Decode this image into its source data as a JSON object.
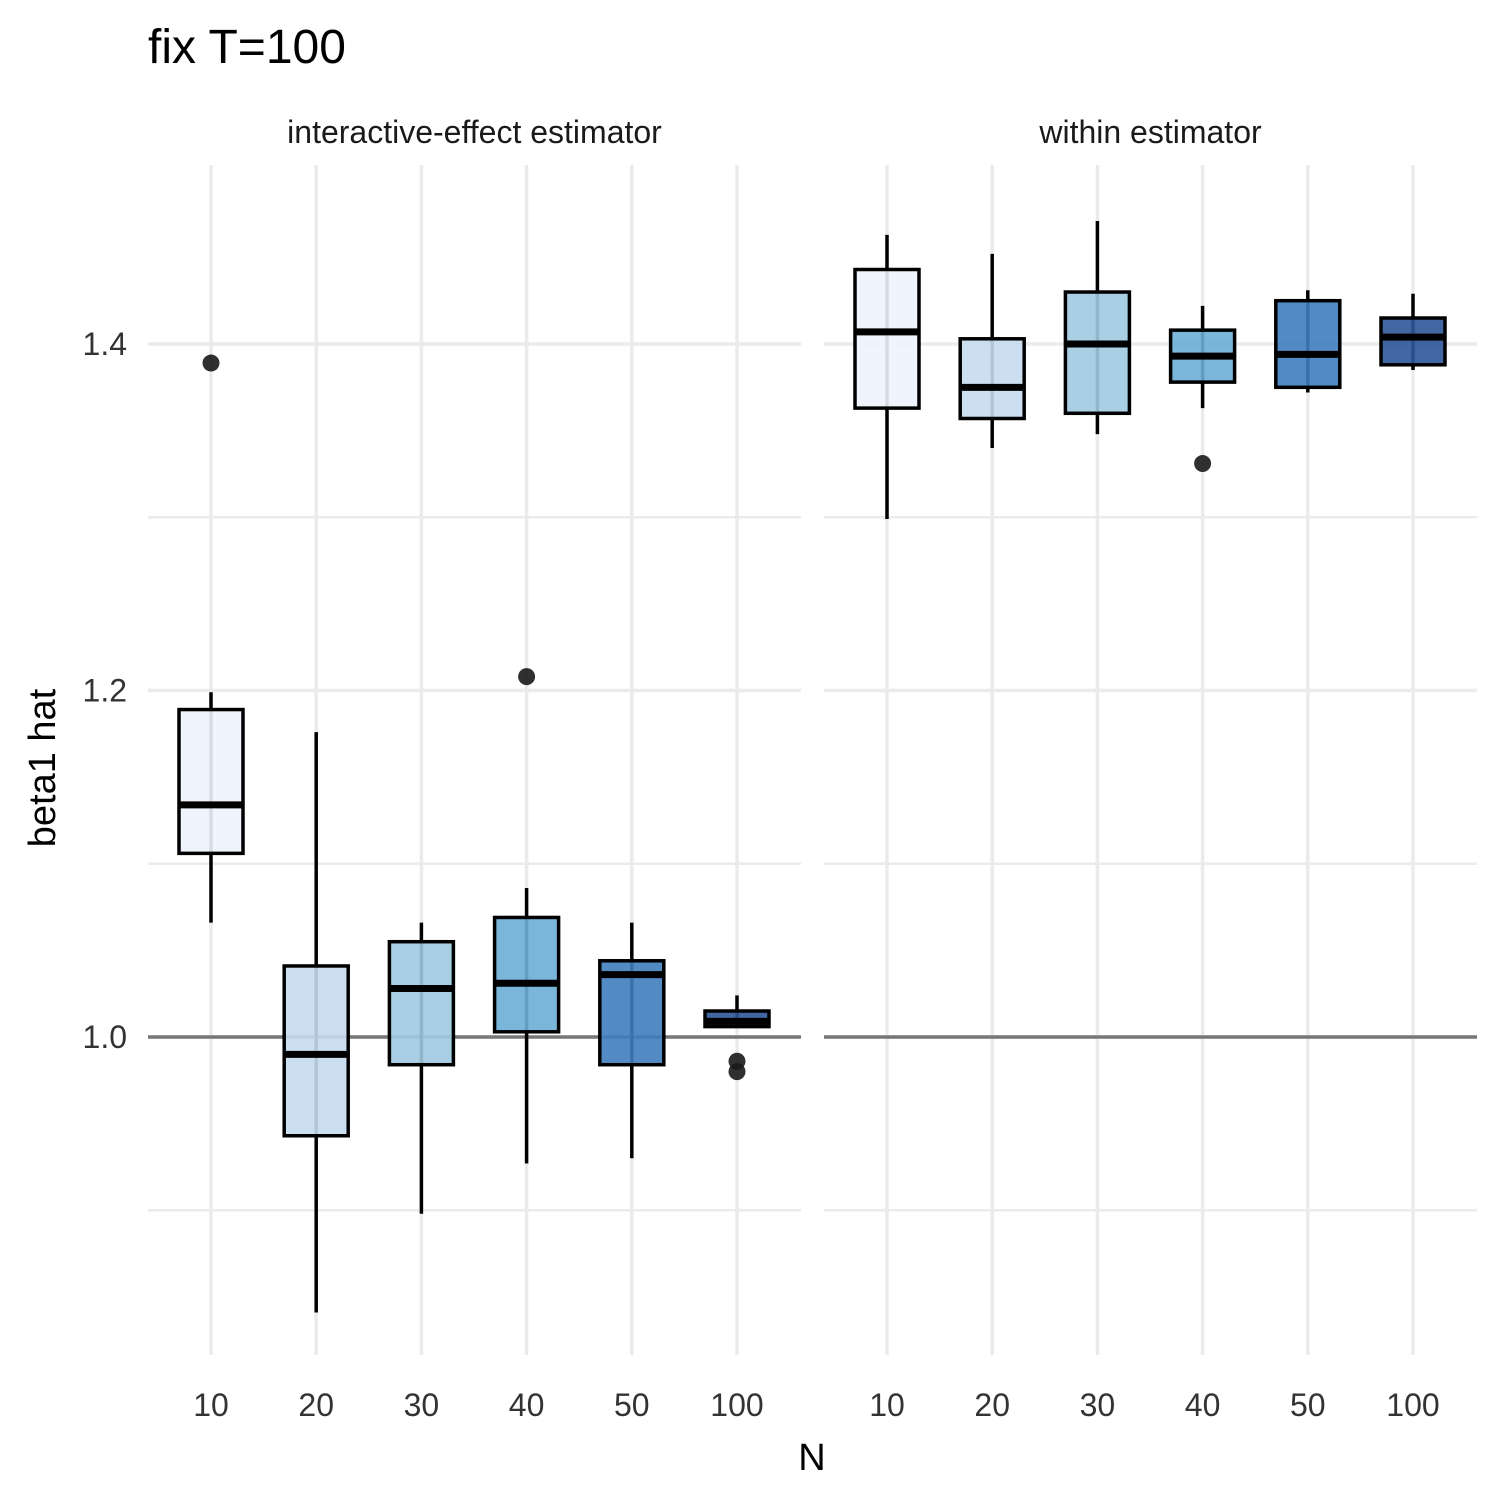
{
  "chart_data": {
    "type": "boxplot",
    "title": "fix T=100",
    "xlabel": "N",
    "ylabel": "beta1 hat",
    "categories": [
      "10",
      "20",
      "30",
      "40",
      "50",
      "100"
    ],
    "ylim": [
      0.84,
      1.49
    ],
    "yticks": [
      1.0,
      1.2,
      1.4
    ],
    "ytick_labels": [
      "1.0",
      "1.2",
      "1.4"
    ],
    "minor_gridlines": [
      0.9,
      1.1,
      1.3
    ],
    "reference_line": 1.0,
    "grid": true,
    "legend": "none",
    "colors": {
      "fills": [
        "#eef3fd",
        "#c6dbef",
        "#9ecae1",
        "#6baed6",
        "#3f7dbd",
        "#2c5597"
      ],
      "box_stroke": "#000000",
      "grid": "#ebebeb",
      "reference_line": "#777777",
      "text": "#333333"
    },
    "panels": [
      {
        "name": "interactive-effect estimator",
        "boxes": [
          {
            "n": "10",
            "whisker_low": 1.066,
            "q1": 1.106,
            "median": 1.134,
            "q3": 1.189,
            "whisker_high": 1.199,
            "outliers": [
              1.389
            ]
          },
          {
            "n": "20",
            "whisker_low": 0.841,
            "q1": 0.943,
            "median": 0.99,
            "q3": 1.041,
            "whisker_high": 1.176,
            "outliers": []
          },
          {
            "n": "30",
            "whisker_low": 0.898,
            "q1": 0.984,
            "median": 1.028,
            "q3": 1.055,
            "whisker_high": 1.066,
            "outliers": []
          },
          {
            "n": "40",
            "whisker_low": 0.927,
            "q1": 1.003,
            "median": 1.031,
            "q3": 1.069,
            "whisker_high": 1.086,
            "outliers": [
              1.208
            ]
          },
          {
            "n": "50",
            "whisker_low": 0.93,
            "q1": 0.984,
            "median": 1.036,
            "q3": 1.044,
            "whisker_high": 1.066,
            "outliers": []
          },
          {
            "n": "100",
            "whisker_low": 1.006,
            "q1": 1.006,
            "median": 1.009,
            "q3": 1.015,
            "whisker_high": 1.024,
            "outliers": [
              0.986,
              0.98
            ]
          }
        ]
      },
      {
        "name": "within estimator",
        "boxes": [
          {
            "n": "10",
            "whisker_low": 1.299,
            "q1": 1.363,
            "median": 1.407,
            "q3": 1.443,
            "whisker_high": 1.463,
            "outliers": []
          },
          {
            "n": "20",
            "whisker_low": 1.34,
            "q1": 1.357,
            "median": 1.375,
            "q3": 1.403,
            "whisker_high": 1.452,
            "outliers": []
          },
          {
            "n": "30",
            "whisker_low": 1.348,
            "q1": 1.36,
            "median": 1.4,
            "q3": 1.43,
            "whisker_high": 1.471,
            "outliers": []
          },
          {
            "n": "40",
            "whisker_low": 1.363,
            "q1": 1.378,
            "median": 1.393,
            "q3": 1.408,
            "whisker_high": 1.422,
            "outliers": [
              1.331
            ]
          },
          {
            "n": "50",
            "whisker_low": 1.372,
            "q1": 1.375,
            "median": 1.394,
            "q3": 1.425,
            "whisker_high": 1.431,
            "outliers": []
          },
          {
            "n": "100",
            "whisker_low": 1.385,
            "q1": 1.388,
            "median": 1.404,
            "q3": 1.415,
            "whisker_high": 1.429,
            "outliers": []
          }
        ]
      }
    ]
  }
}
